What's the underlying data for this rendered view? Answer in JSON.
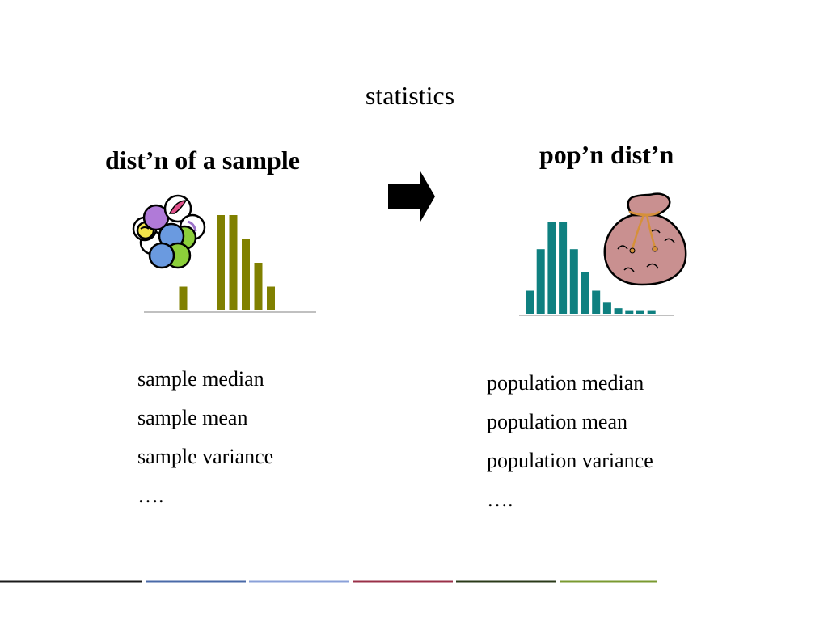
{
  "title": "statistics",
  "left": {
    "heading": "dist’n of a sample",
    "items": [
      "sample median",
      "sample mean",
      "sample variance",
      "…."
    ]
  },
  "right": {
    "heading": "pop’n dist’n",
    "items": [
      "population median",
      "population mean",
      "population variance",
      "…."
    ]
  },
  "icons": {
    "marbles": "marbles-icon",
    "arrow": "right-arrow-icon",
    "bag": "money-bag-icon"
  },
  "colors": {
    "sample_bars": "#808000",
    "population_bars": "#0f8080",
    "footer": [
      "#1a1a1a",
      "#4a6aa8",
      "#8aa0d8",
      "#9a3048",
      "#2a3a18",
      "#7a9a30"
    ]
  },
  "chart_data": [
    {
      "type": "bar",
      "name": "sample",
      "values": [
        0,
        1,
        0,
        0,
        4,
        4,
        3,
        2,
        1
      ],
      "ylim": [
        0,
        4
      ]
    },
    {
      "type": "bar",
      "name": "population",
      "values": [
        2.5,
        7,
        10,
        10,
        7,
        4.5,
        2.5,
        1.2,
        0.6,
        0.3,
        0.3,
        0.3
      ],
      "ylim": [
        0,
        10
      ]
    }
  ]
}
